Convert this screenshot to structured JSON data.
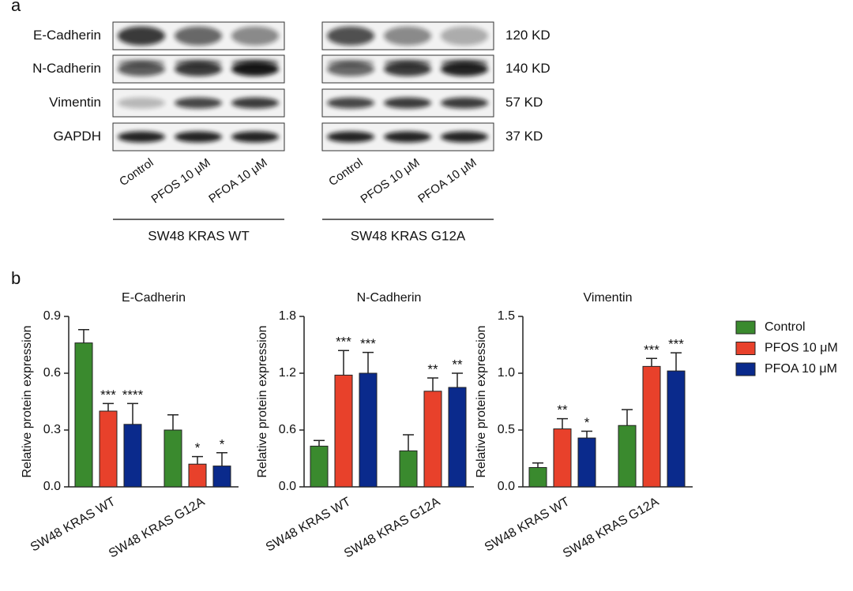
{
  "panel_a": {
    "label": "a",
    "rows": [
      "E-Cadherin",
      "N-Cadherin",
      "Vimentin",
      "GAPDH"
    ],
    "sizes": [
      "120 KD",
      "140 KD",
      "57 KD",
      "37 KD"
    ],
    "lanes": [
      "Control",
      "PFOS 10 μM",
      "PFOA 10 μM"
    ],
    "groups": [
      "SW48 KRAS WT",
      "SW48 KRAS G12A"
    ]
  },
  "panel_b": {
    "label": "b"
  },
  "chart_data": [
    {
      "type": "bar",
      "title": "E-Cadherin",
      "y_label": "Relative protein expression",
      "categories": [
        "SW48 KRAS WT",
        "SW48 KRAS G12A"
      ],
      "series": [
        {
          "name": "Control",
          "color": "#3a8a2e",
          "values": [
            0.76,
            0.3
          ],
          "errors": [
            0.07,
            0.08
          ]
        },
        {
          "name": "PFOS 10 μM",
          "color": "#e8412b",
          "values": [
            0.4,
            0.12
          ],
          "errors": [
            0.04,
            0.04
          ],
          "annotations": [
            "***",
            "*"
          ]
        },
        {
          "name": "PFOA 10 μM",
          "color": "#0a2a8c",
          "values": [
            0.33,
            0.11
          ],
          "errors": [
            0.11,
            0.07
          ],
          "annotations": [
            "****",
            "*"
          ]
        }
      ],
      "ylim": [
        0,
        0.9
      ],
      "yticks": [
        {
          "value": 0,
          "label": "0.0"
        },
        0.3,
        0.6,
        0.9
      ]
    },
    {
      "type": "bar",
      "title": "N-Cadherin",
      "y_label": "Relative protein expression",
      "categories": [
        "SW48 KRAS WT",
        "SW48 KRAS G12A"
      ],
      "series": [
        {
          "name": "Control",
          "color": "#3a8a2e",
          "values": [
            0.43,
            0.38
          ],
          "errors": [
            0.06,
            0.17
          ]
        },
        {
          "name": "PFOS 10 μM",
          "color": "#e8412b",
          "values": [
            1.18,
            1.01
          ],
          "errors": [
            0.26,
            0.14
          ],
          "annotations": [
            "***",
            "**"
          ]
        },
        {
          "name": "PFOA 10 μM",
          "color": "#0a2a8c",
          "values": [
            1.2,
            1.05
          ],
          "errors": [
            0.22,
            0.15
          ],
          "annotations": [
            "***",
            "**"
          ]
        }
      ],
      "ylim": [
        0,
        1.8
      ],
      "yticks": [
        {
          "value": 0,
          "label": "0.0"
        },
        0.6,
        1.2,
        1.8
      ]
    },
    {
      "type": "bar",
      "title": "Vimentin",
      "y_label": "Relative protein expression",
      "categories": [
        "SW48 KRAS WT",
        "SW48 KRAS G12A"
      ],
      "series": [
        {
          "name": "Control",
          "color": "#3a8a2e",
          "values": [
            0.17,
            0.54
          ],
          "errors": [
            0.04,
            0.14
          ]
        },
        {
          "name": "PFOS 10 μM",
          "color": "#e8412b",
          "values": [
            0.51,
            1.06
          ],
          "errors": [
            0.09,
            0.07
          ],
          "annotations": [
            "**",
            "***"
          ]
        },
        {
          "name": "PFOA 10 μM",
          "color": "#0a2a8c",
          "values": [
            0.43,
            1.02
          ],
          "errors": [
            0.06,
            0.16
          ],
          "annotations": [
            "*",
            "***"
          ]
        }
      ],
      "ylim": [
        0,
        1.5
      ],
      "yticks": [
        {
          "value": 0,
          "label": "0.0"
        },
        0.5,
        {
          "value": 1,
          "label": "1.0"
        },
        1.5
      ],
      "legend": "right"
    }
  ]
}
